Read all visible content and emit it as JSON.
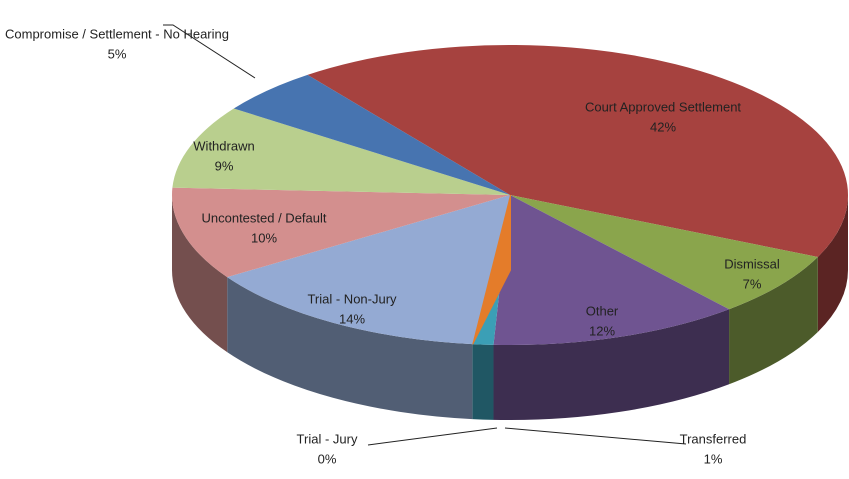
{
  "chart_data": {
    "type": "pie3d",
    "categories": [
      "Court Approved Settlement",
      "Dismissal",
      "Other",
      "Transferred",
      "Trial - Jury",
      "Trial - Non-Jury",
      "Uncontested / Default",
      "Withdrawn",
      "Compromise / Settlement - No Hearing"
    ],
    "values": [
      42,
      7,
      12,
      1,
      0,
      14,
      10,
      9,
      5
    ],
    "value_labels": [
      "42%",
      "7%",
      "12%",
      "1%",
      "0%",
      "14%",
      "10%",
      "9%",
      "5%"
    ],
    "colors": [
      "#a6423f",
      "#8aa54c",
      "#6f5491",
      "#3b9fb6",
      "#e47c2a",
      "#94aad3",
      "#d38f8e",
      "#b9cf8e",
      "#4774b0"
    ]
  }
}
